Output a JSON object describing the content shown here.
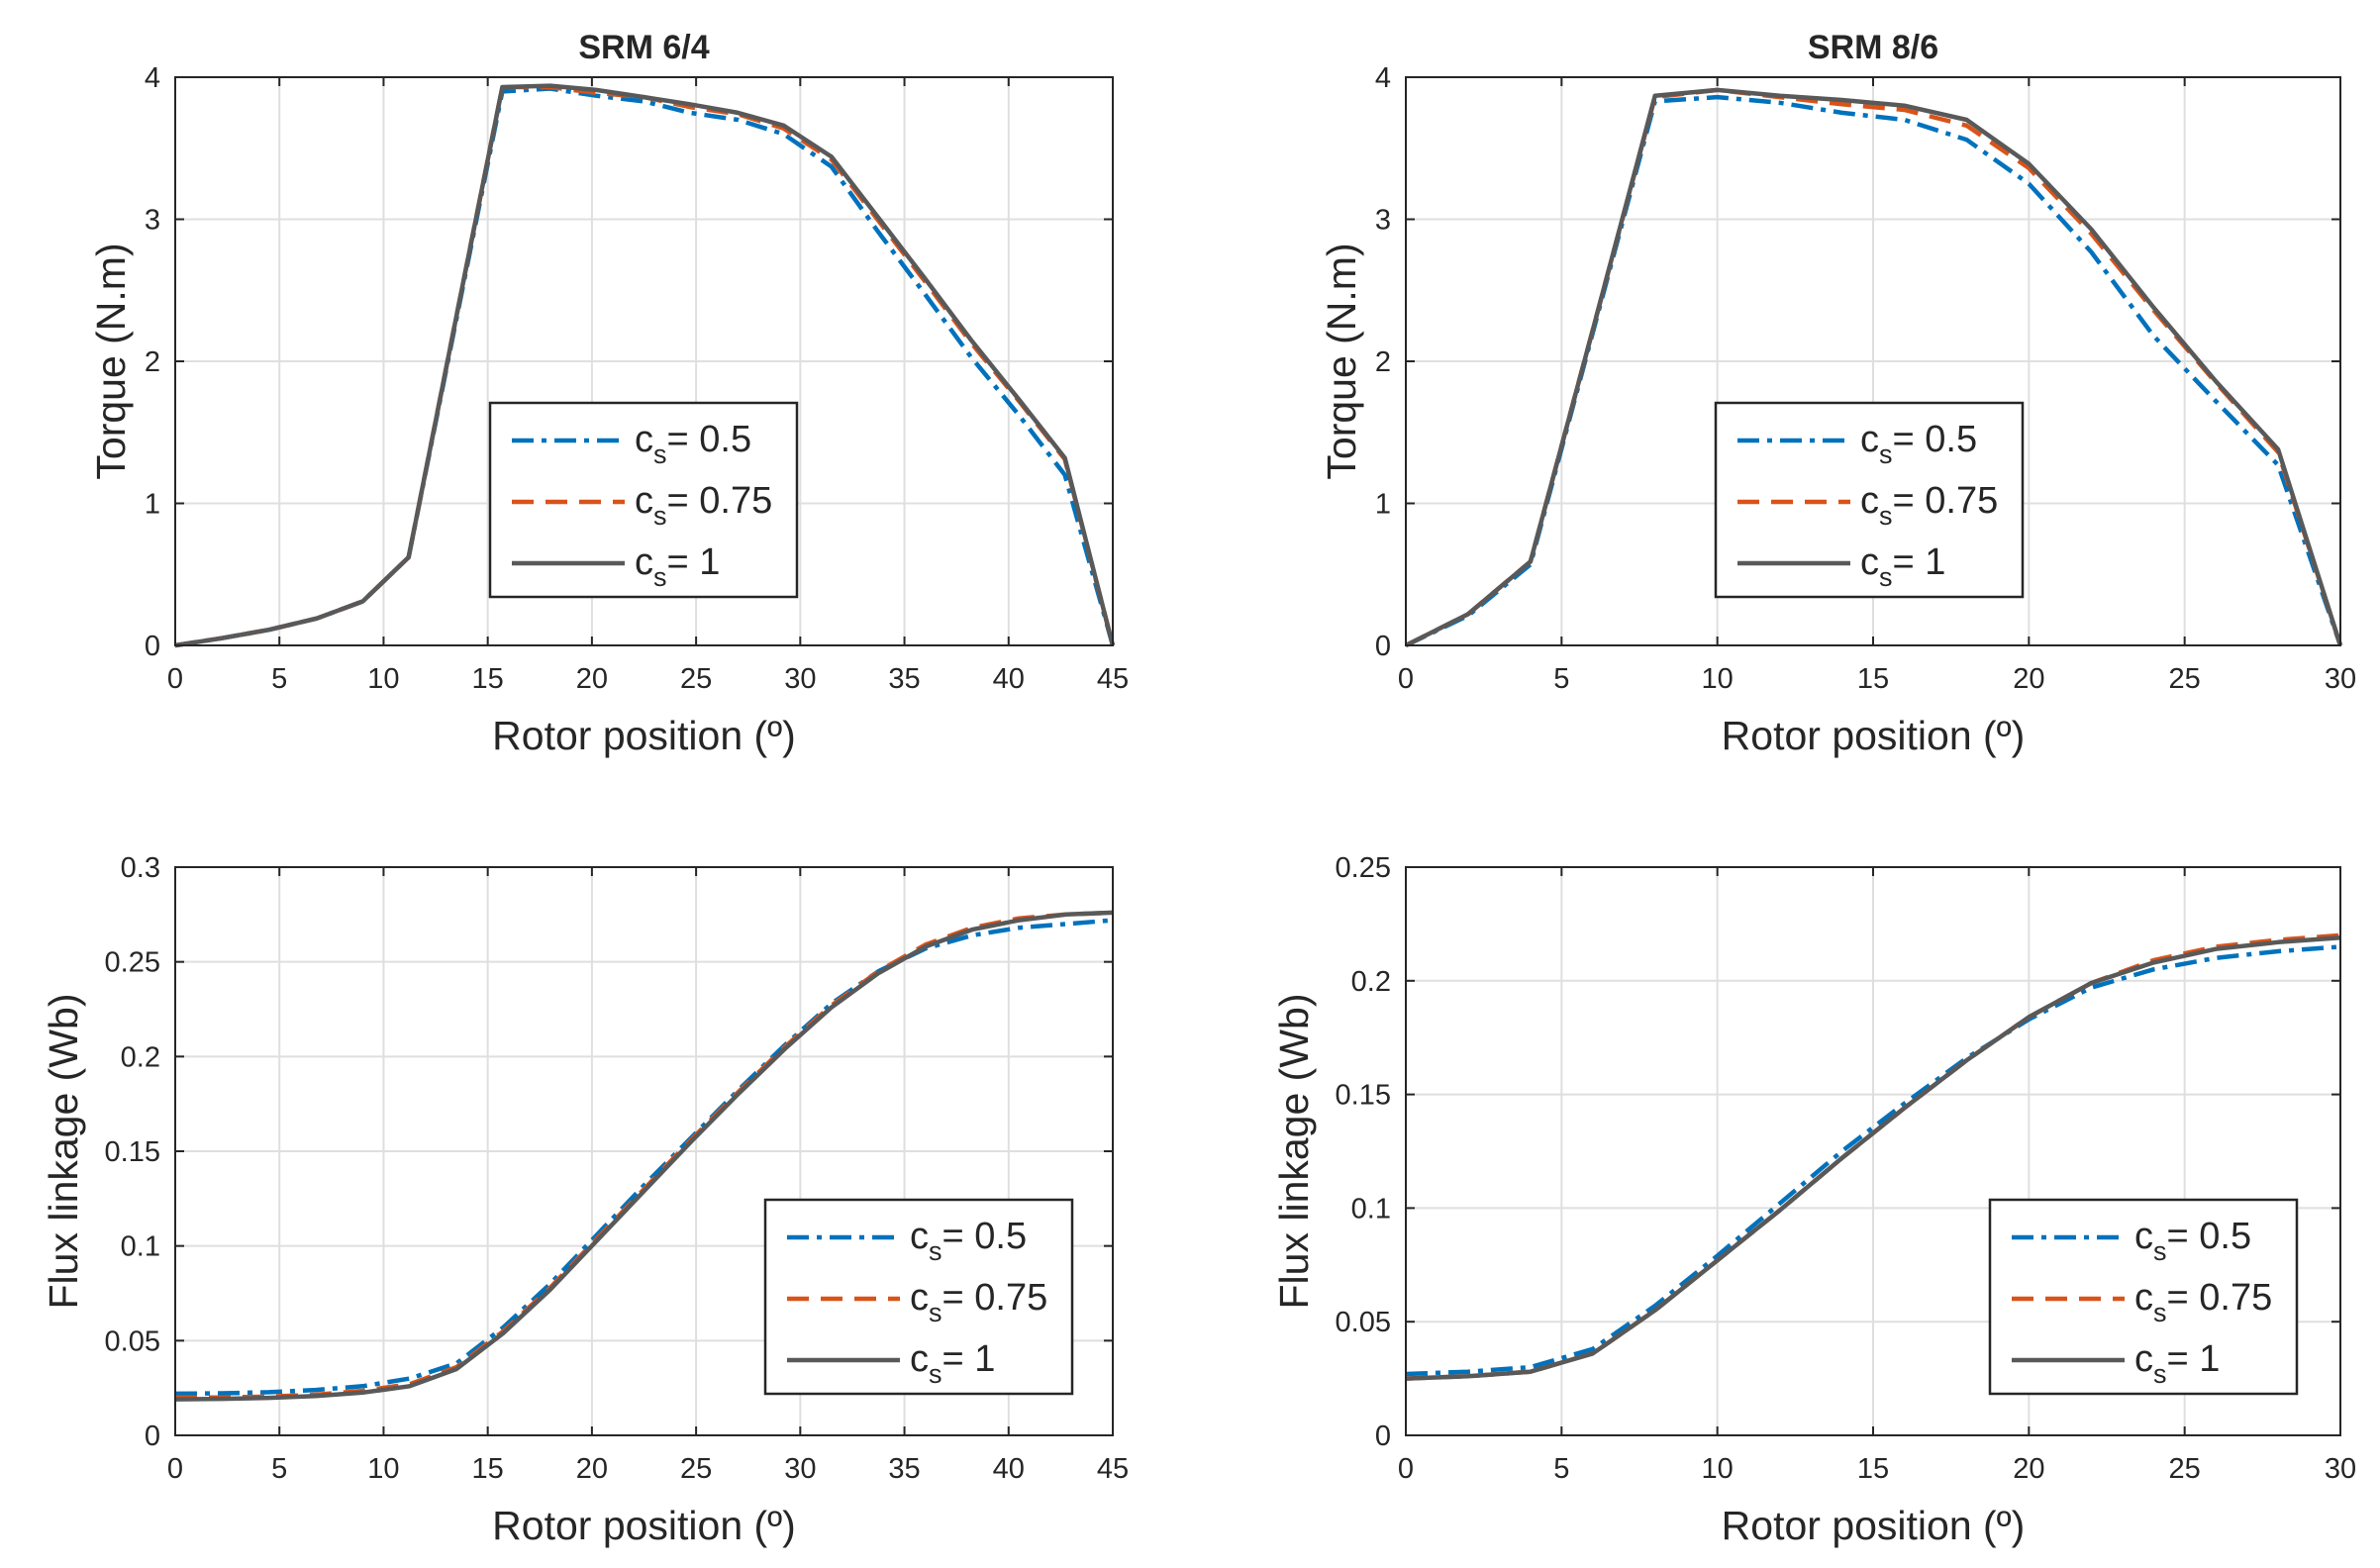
{
  "colors": {
    "cs05": "#0072BD",
    "cs075": "#D95319",
    "cs1": "#595959",
    "grid": "#dfdfdf",
    "axis": "#262626"
  },
  "chart_data": [
    {
      "id": "srm64-torque",
      "type": "line",
      "title": "SRM 6/4",
      "xlabel": "Rotor position (º)",
      "ylabel": "Torque (N.m)",
      "xlim": [
        0,
        45
      ],
      "ylim": [
        0,
        4
      ],
      "xticks": [
        "0",
        "5",
        "10",
        "15",
        "20",
        "25",
        "30",
        "35",
        "40",
        "45"
      ],
      "yticks": [
        "0",
        "1",
        "2",
        "3",
        "4"
      ],
      "legend_loc": "center",
      "series": [
        {
          "name": "c_s = 0.5",
          "label_base": "c",
          "label_sub": "s",
          "label_rest": "= 0.5",
          "style": "dashdot",
          "x": [
            0,
            2.2,
            4.5,
            6.8,
            9,
            11.2,
            13.5,
            15.7,
            18,
            20.2,
            22.5,
            24.7,
            27,
            29.2,
            31.5,
            33.7,
            36,
            38.2,
            40.5,
            42.7,
            45
          ],
          "y": [
            0,
            0.05,
            0.11,
            0.19,
            0.31,
            0.62,
            2.3,
            3.9,
            3.92,
            3.87,
            3.83,
            3.75,
            3.7,
            3.6,
            3.37,
            2.92,
            2.47,
            2.03,
            1.62,
            1.2,
            0
          ]
        },
        {
          "name": "c_s = 0.75",
          "label_base": "c",
          "label_sub": "s",
          "label_rest": "= 0.75",
          "style": "dashed",
          "x": [
            0,
            2.2,
            4.5,
            6.8,
            9,
            11.2,
            13.5,
            15.7,
            18,
            20.2,
            22.5,
            24.7,
            27,
            29.2,
            31.5,
            33.7,
            36,
            38.2,
            40.5,
            42.7,
            45
          ],
          "y": [
            0,
            0.05,
            0.11,
            0.19,
            0.31,
            0.62,
            2.32,
            3.93,
            3.93,
            3.89,
            3.86,
            3.79,
            3.74,
            3.64,
            3.42,
            3.0,
            2.56,
            2.13,
            1.72,
            1.31,
            0
          ]
        },
        {
          "name": "c_s = 1",
          "label_base": "c",
          "label_sub": "s",
          "label_rest": "= 1",
          "style": "solid",
          "x": [
            0,
            2.2,
            4.5,
            6.8,
            9,
            11.2,
            13.5,
            15.7,
            18,
            20.2,
            22.5,
            24.7,
            27,
            29.2,
            31.5,
            33.7,
            36,
            38.2,
            40.5,
            42.7,
            45
          ],
          "y": [
            0,
            0.05,
            0.11,
            0.19,
            0.31,
            0.62,
            2.32,
            3.93,
            3.94,
            3.91,
            3.86,
            3.81,
            3.75,
            3.66,
            3.44,
            3.02,
            2.58,
            2.15,
            1.73,
            1.32,
            0
          ]
        }
      ]
    },
    {
      "id": "srm86-torque",
      "type": "line",
      "title": "SRM 8/6",
      "xlabel": "Rotor position (º)",
      "ylabel": "Torque (N.m)",
      "xlim": [
        0,
        30
      ],
      "ylim": [
        0,
        4
      ],
      "xticks": [
        "0",
        "5",
        "10",
        "15",
        "20",
        "25",
        "30"
      ],
      "yticks": [
        "0",
        "1",
        "2",
        "3",
        "4"
      ],
      "legend_loc": "center",
      "series": [
        {
          "name": "c_s = 0.5",
          "label_base": "c",
          "label_sub": "s",
          "label_rest": "= 0.5",
          "style": "dashdot",
          "x": [
            0,
            2,
            4,
            6,
            8,
            10,
            12,
            14,
            16,
            18,
            20,
            22,
            24,
            26,
            28,
            30
          ],
          "y": [
            0,
            0.21,
            0.57,
            2.2,
            3.83,
            3.86,
            3.82,
            3.75,
            3.7,
            3.56,
            3.25,
            2.77,
            2.18,
            1.72,
            1.27,
            0
          ]
        },
        {
          "name": "c_s = 0.75",
          "label_base": "c",
          "label_sub": "s",
          "label_rest": "= 0.75",
          "style": "dashed",
          "x": [
            0,
            2,
            4,
            6,
            8,
            10,
            12,
            14,
            16,
            18,
            20,
            22,
            24,
            26,
            28,
            30
          ],
          "y": [
            0,
            0.22,
            0.59,
            2.22,
            3.86,
            3.91,
            3.86,
            3.81,
            3.77,
            3.66,
            3.36,
            2.9,
            2.36,
            1.85,
            1.36,
            0
          ]
        },
        {
          "name": "c_s = 1",
          "label_base": "c",
          "label_sub": "s",
          "label_rest": "= 1",
          "style": "solid",
          "x": [
            0,
            2,
            4,
            6,
            8,
            10,
            12,
            14,
            16,
            18,
            20,
            22,
            24,
            26,
            28,
            30
          ],
          "y": [
            0,
            0.22,
            0.59,
            2.22,
            3.87,
            3.91,
            3.87,
            3.84,
            3.8,
            3.7,
            3.39,
            2.93,
            2.38,
            1.86,
            1.38,
            0
          ]
        }
      ]
    },
    {
      "id": "srm64-flux",
      "type": "line",
      "xlabel": "Rotor position (º)",
      "ylabel": "Flux linkage (Wb)",
      "xlim": [
        0,
        45
      ],
      "ylim": [
        0,
        0.3
      ],
      "xticks": [
        "0",
        "5",
        "10",
        "15",
        "20",
        "25",
        "30",
        "35",
        "40",
        "45"
      ],
      "yticks": [
        "0",
        "0.05",
        "0.1",
        "0.15",
        "0.2",
        "0.25",
        "0.3"
      ],
      "legend_loc": "bottom-right",
      "series": [
        {
          "name": "c_s = 0.5",
          "label_base": "c",
          "label_sub": "s",
          "label_rest": "= 0.5",
          "style": "dashdot",
          "x": [
            0,
            2.25,
            4.5,
            6.75,
            9,
            11.25,
            13.5,
            15.75,
            18,
            20.25,
            22.5,
            24.75,
            27,
            29.25,
            31.5,
            33.75,
            36,
            38.25,
            40.5,
            42.75,
            45
          ],
          "y": [
            0.022,
            0.0222,
            0.0228,
            0.024,
            0.026,
            0.03,
            0.038,
            0.057,
            0.08,
            0.106,
            0.132,
            0.157,
            0.182,
            0.206,
            0.228,
            0.245,
            0.257,
            0.264,
            0.268,
            0.27,
            0.272
          ]
        },
        {
          "name": "c_s = 0.75",
          "label_base": "c",
          "label_sub": "s",
          "label_rest": "= 0.75",
          "style": "dashed",
          "x": [
            0,
            2.25,
            4.5,
            6.75,
            9,
            11.25,
            13.5,
            15.75,
            18,
            20.25,
            22.5,
            24.75,
            27,
            29.25,
            31.5,
            33.75,
            36,
            38.25,
            40.5,
            42.75,
            45
          ],
          "y": [
            0.02,
            0.02,
            0.0205,
            0.0215,
            0.0235,
            0.027,
            0.036,
            0.055,
            0.078,
            0.104,
            0.13,
            0.156,
            0.181,
            0.205,
            0.227,
            0.245,
            0.259,
            0.268,
            0.273,
            0.275,
            0.276
          ]
        },
        {
          "name": "c_s = 1",
          "label_base": "c",
          "label_sub": "s",
          "label_rest": "= 1",
          "style": "solid",
          "x": [
            0,
            2.25,
            4.5,
            6.75,
            9,
            11.25,
            13.5,
            15.75,
            18,
            20.25,
            22.5,
            24.75,
            27,
            29.25,
            31.5,
            33.75,
            36,
            38.25,
            40.5,
            42.75,
            45
          ],
          "y": [
            0.019,
            0.0193,
            0.0198,
            0.0208,
            0.0226,
            0.026,
            0.035,
            0.054,
            0.077,
            0.103,
            0.129,
            0.155,
            0.18,
            0.204,
            0.226,
            0.244,
            0.258,
            0.267,
            0.272,
            0.275,
            0.276
          ]
        }
      ]
    },
    {
      "id": "srm86-flux",
      "type": "line",
      "xlabel": "Rotor position (º)",
      "ylabel": "Flux linkage (Wb)",
      "xlim": [
        0,
        30
      ],
      "ylim": [
        0,
        0.25
      ],
      "xticks": [
        "0",
        "5",
        "10",
        "15",
        "20",
        "25",
        "30"
      ],
      "yticks": [
        "0",
        "0.05",
        "0.1",
        "0.15",
        "0.2",
        "0.25"
      ],
      "legend_loc": "bottom-right",
      "series": [
        {
          "name": "c_s = 0.5",
          "label_base": "c",
          "label_sub": "s",
          "label_rest": "= 0.5",
          "style": "dashdot",
          "x": [
            0,
            2,
            4,
            6,
            8,
            10,
            12,
            14,
            16,
            18,
            20,
            22,
            24,
            26,
            28,
            30
          ],
          "y": [
            0.027,
            0.028,
            0.03,
            0.038,
            0.057,
            0.079,
            0.102,
            0.125,
            0.146,
            0.166,
            0.183,
            0.197,
            0.205,
            0.21,
            0.213,
            0.215
          ]
        },
        {
          "name": "c_s = 0.75",
          "label_base": "c",
          "label_sub": "s",
          "label_rest": "= 0.75",
          "style": "dashed",
          "x": [
            0,
            2,
            4,
            6,
            8,
            10,
            12,
            14,
            16,
            18,
            20,
            22,
            24,
            26,
            28,
            30
          ],
          "y": [
            0.025,
            0.026,
            0.028,
            0.036,
            0.055,
            0.077,
            0.099,
            0.122,
            0.144,
            0.165,
            0.184,
            0.199,
            0.209,
            0.215,
            0.218,
            0.22
          ]
        },
        {
          "name": "c_s = 1",
          "label_base": "c",
          "label_sub": "s",
          "label_rest": "= 1",
          "style": "solid",
          "x": [
            0,
            2,
            4,
            6,
            8,
            10,
            12,
            14,
            16,
            18,
            20,
            22,
            24,
            26,
            28,
            30
          ],
          "y": [
            0.025,
            0.026,
            0.028,
            0.036,
            0.055,
            0.077,
            0.099,
            0.122,
            0.144,
            0.165,
            0.184,
            0.199,
            0.208,
            0.214,
            0.217,
            0.219
          ]
        }
      ]
    }
  ]
}
